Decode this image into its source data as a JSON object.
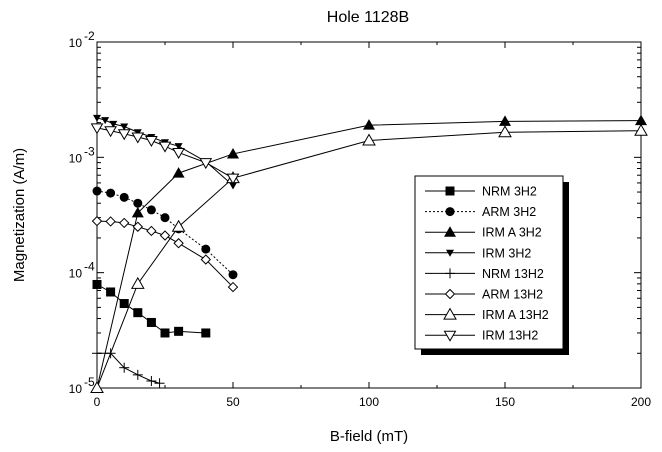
{
  "chart_data": {
    "type": "line",
    "title": "Hole 1128B",
    "xlabel": "B-field (mT)",
    "ylabel": "Magnetization (A/m)",
    "xlim": [
      0,
      200
    ],
    "ylim": [
      1e-05,
      0.01
    ],
    "yscale": "log",
    "x_ticks": [
      {
        "value": 0,
        "label": "0"
      },
      {
        "value": 50,
        "label": "50"
      },
      {
        "value": 100,
        "label": "100"
      },
      {
        "value": 150,
        "label": "150"
      },
      {
        "value": 200,
        "label": "200"
      }
    ],
    "y_ticks": [
      {
        "value": 1e-05,
        "base": "10",
        "exp": "-5"
      },
      {
        "value": 0.0001,
        "base": "10",
        "exp": "-4"
      },
      {
        "value": 0.001,
        "base": "10",
        "exp": "-3"
      },
      {
        "value": 0.01,
        "base": "10",
        "exp": "-2"
      }
    ],
    "grid": false,
    "legend_position": "right",
    "series": [
      {
        "name": "NRM  3H2",
        "marker": "square",
        "line": "solid",
        "x": [
          0,
          5,
          10,
          15,
          20,
          25,
          30,
          40
        ],
        "y": [
          7.9e-05,
          6.8e-05,
          5.4e-05,
          4.5e-05,
          3.7e-05,
          3e-05,
          3.1e-05,
          3e-05
        ]
      },
      {
        "name": "ARM  3H2",
        "marker": "circle",
        "line": "dotted",
        "x": [
          0,
          5,
          10,
          15,
          20,
          25,
          30,
          40,
          50
        ],
        "y": [
          0.00051,
          0.00049,
          0.00045,
          0.0004,
          0.00035,
          0.0003,
          0.00024,
          0.00016,
          9.6e-05
        ]
      },
      {
        "name": "IRM  A 3H2",
        "marker": "triangle-up-filled",
        "line": "solid",
        "x": [
          0,
          15,
          30,
          50,
          100,
          150,
          200
        ],
        "y": [
          1e-05,
          0.00033,
          0.00073,
          0.00107,
          0.0019,
          0.00205,
          0.00208
        ]
      },
      {
        "name": "IRM  3H2",
        "marker": "triangle-down-filled",
        "line": "solid",
        "x": [
          0,
          3,
          6,
          10,
          15,
          20,
          25,
          30,
          40,
          50
        ],
        "y": [
          0.0022,
          0.0021,
          0.00195,
          0.00185,
          0.00165,
          0.0015,
          0.00135,
          0.00125,
          0.00092,
          0.00057
        ]
      },
      {
        "name": "NRM  13H2",
        "marker": "plus",
        "line": "solid",
        "x": [
          0,
          5,
          10,
          15,
          20,
          23
        ],
        "y": [
          2e-05,
          2e-05,
          1.5e-05,
          1.3e-05,
          1.15e-05,
          1.1e-05
        ]
      },
      {
        "name": "ARM  13H2",
        "marker": "diamond-open",
        "line": "solid",
        "x": [
          0,
          5,
          10,
          15,
          20,
          25,
          30,
          40,
          50
        ],
        "y": [
          0.00028,
          0.000278,
          0.00027,
          0.00025,
          0.00023,
          0.00021,
          0.00018,
          0.00013,
          7.5e-05
        ]
      },
      {
        "name": "IRM  A 13H2",
        "marker": "triangle-up-open",
        "line": "solid",
        "x": [
          0,
          15,
          30,
          50,
          100,
          150,
          200
        ],
        "y": [
          1e-05,
          8e-05,
          0.00025,
          0.00066,
          0.0014,
          0.00165,
          0.0017
        ]
      },
      {
        "name": "IRM  13H2",
        "marker": "triangle-down-open",
        "line": "solid",
        "x": [
          0,
          5,
          10,
          15,
          20,
          25,
          30,
          40,
          50
        ],
        "y": [
          0.0018,
          0.0017,
          0.0016,
          0.0015,
          0.0014,
          0.00125,
          0.0011,
          0.0009,
          0.00066
        ]
      }
    ]
  }
}
